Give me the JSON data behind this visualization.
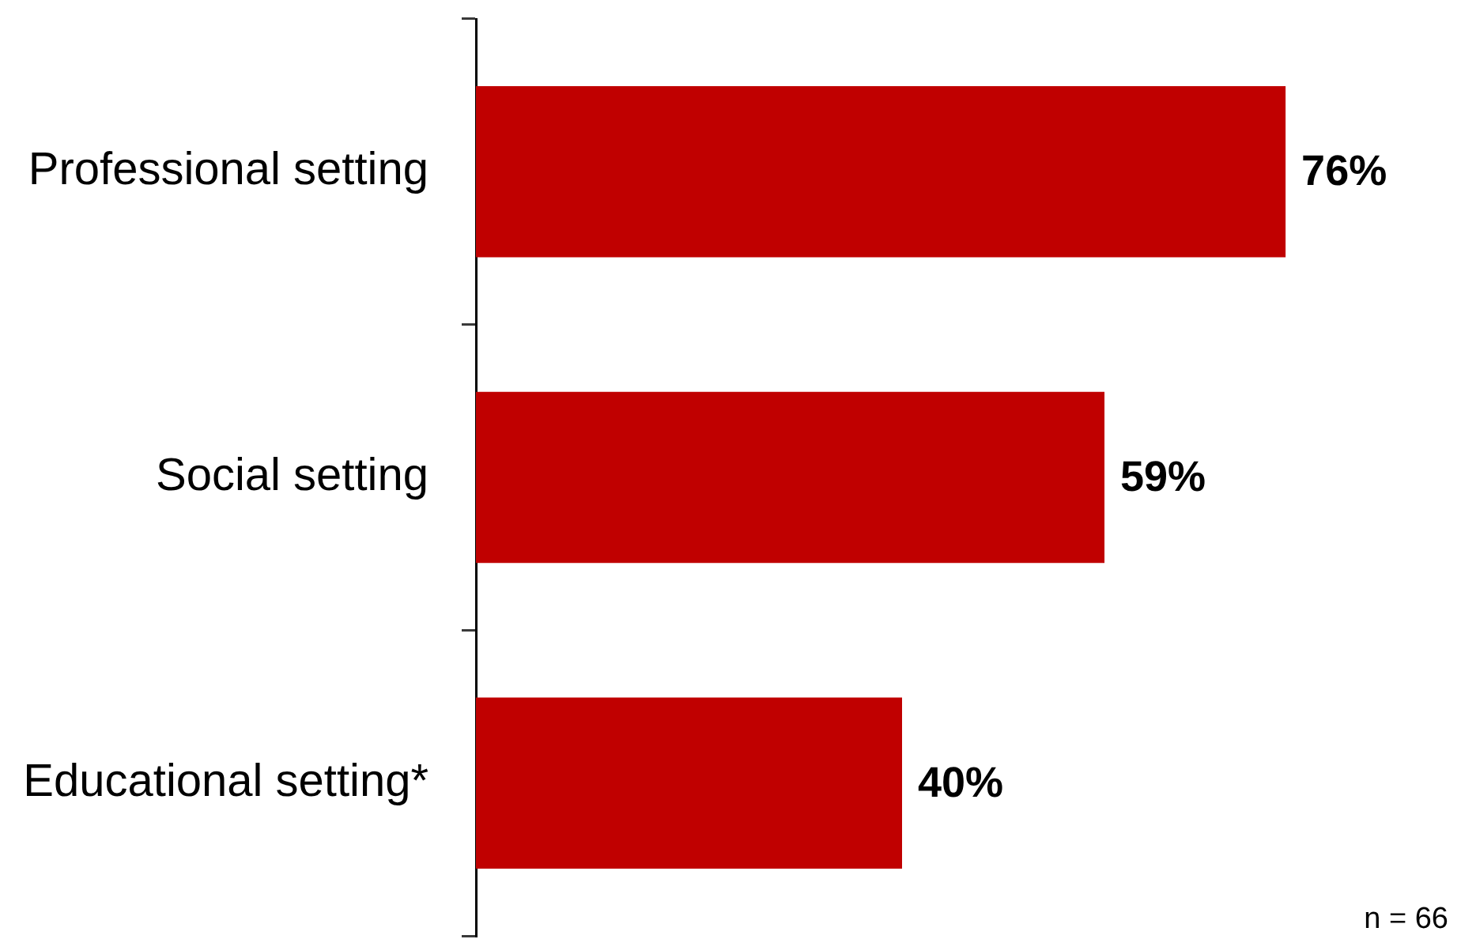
{
  "chart_data": {
    "type": "bar",
    "orientation": "horizontal",
    "categories": [
      "Professional setting",
      "Social setting",
      "Educational setting*"
    ],
    "values": [
      76,
      59,
      40
    ],
    "color": "#c00000",
    "value_labels": [
      "76%",
      "59%",
      "40%"
    ],
    "tick_labels": "y",
    "annotations": [
      "n = 66"
    ]
  }
}
